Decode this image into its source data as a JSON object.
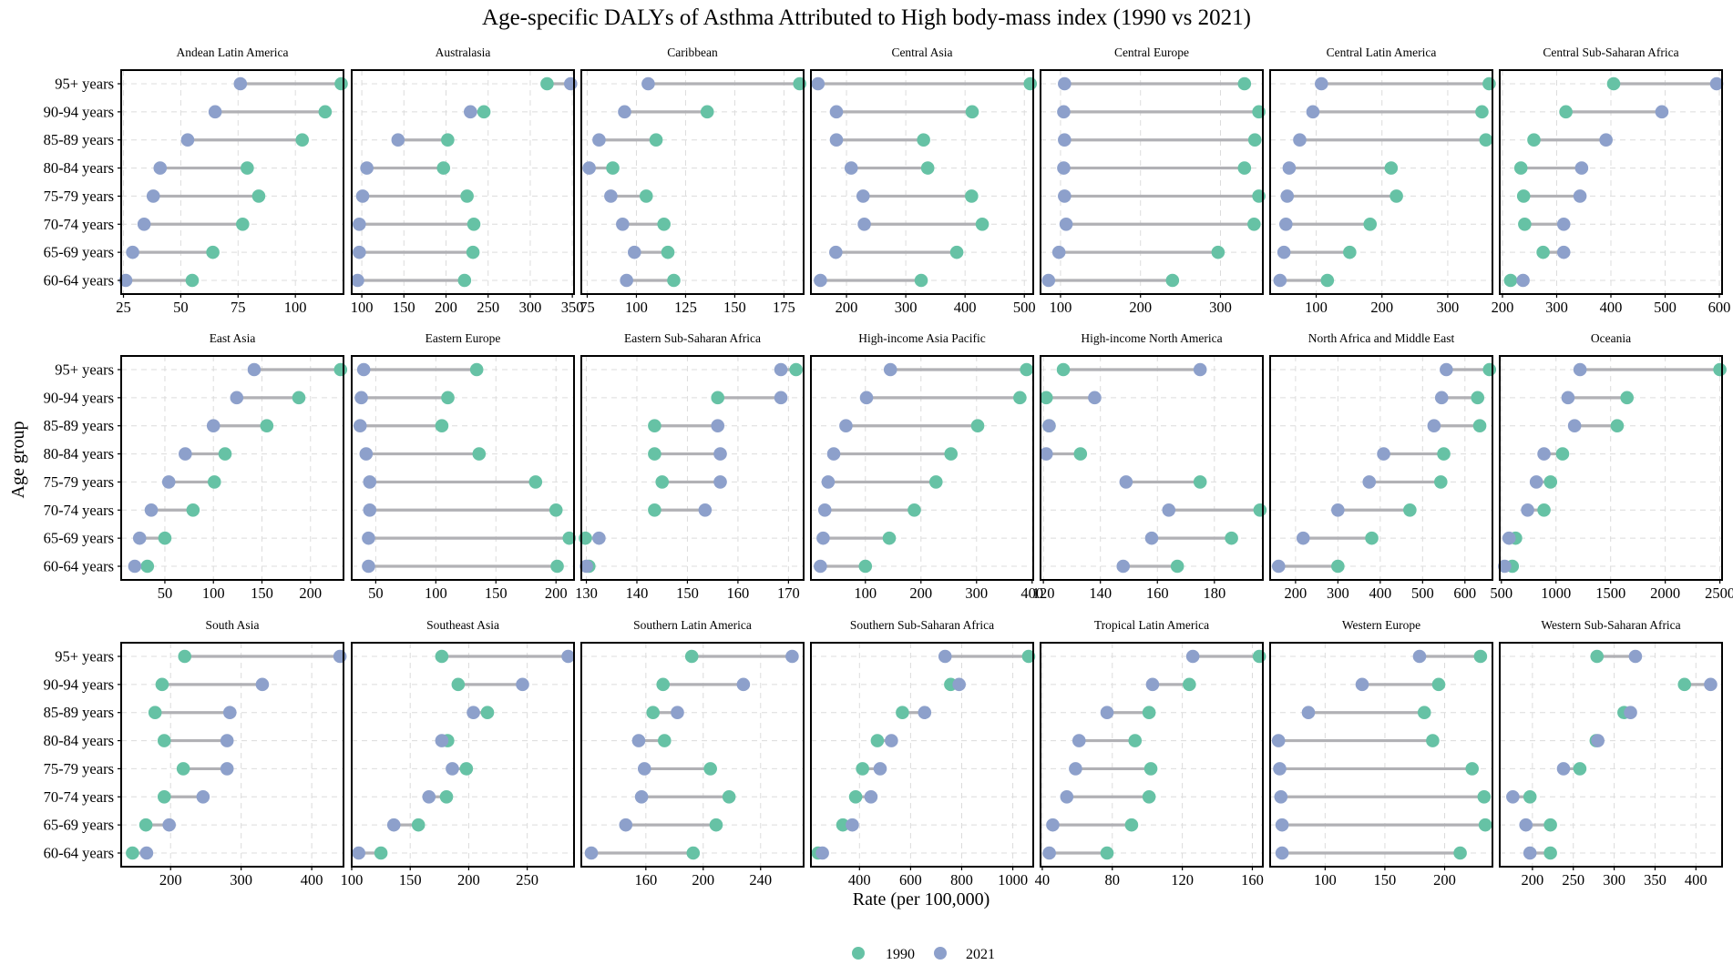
{
  "colors": {
    "c1990": "#66C2A5",
    "c2021": "#8DA0CB",
    "segment": "#b1b1b5"
  },
  "chart_data": {
    "type": "dumbbell",
    "title": "Age-specific DALYs of Asthma Attributed to High body-mass index (1990 vs 2021)",
    "xlabel": "Rate (per 100,000)",
    "ylabel": "Age group",
    "categories": [
      "95+ years",
      "90-94 years",
      "85-89 years",
      "80-84 years",
      "75-79 years",
      "70-74 years",
      "65-69 years",
      "60-64 years"
    ],
    "legend": [
      {
        "label": "1990",
        "color": "#66C2A5"
      },
      {
        "label": "2021",
        "color": "#8DA0CB"
      }
    ],
    "legend_position": "bottom",
    "panels": [
      {
        "name": "Andean Latin America",
        "xlim": [
          24,
          121
        ],
        "ticks": [
          25,
          50,
          75,
          100
        ],
        "v1990": [
          120,
          113,
          103,
          79,
          84,
          77,
          64,
          55
        ],
        "v2021": [
          76,
          65,
          53,
          41,
          38,
          34,
          29,
          26
        ]
      },
      {
        "name": "Australasia",
        "xlim": [
          88,
          352
        ],
        "ticks": [
          100,
          150,
          200,
          250,
          300,
          350
        ],
        "v1990": [
          320,
          245,
          202,
          197,
          225,
          233,
          232,
          222
        ],
        "v2021": [
          348,
          229,
          143,
          106,
          101,
          97,
          97,
          95
        ]
      },
      {
        "name": "Caribbean",
        "xlim": [
          72,
          185
        ],
        "ticks": [
          75,
          100,
          125,
          150,
          175
        ],
        "v1990": [
          183,
          136,
          110,
          88,
          105,
          114,
          116,
          119
        ],
        "v2021": [
          106,
          94,
          81,
          76,
          87,
          93,
          99,
          95
        ]
      },
      {
        "name": "Central Asia",
        "xlim": [
          140,
          515
        ],
        "ticks": [
          200,
          300,
          400,
          500
        ],
        "v1990": [
          510,
          412,
          330,
          337,
          411,
          429,
          386,
          326
        ],
        "v2021": [
          152,
          183,
          183,
          208,
          228,
          230,
          182,
          156
        ]
      },
      {
        "name": "Central Europe",
        "xlim": [
          75,
          353
        ],
        "ticks": [
          100,
          200,
          300
        ],
        "v1990": [
          330,
          348,
          343,
          330,
          348,
          342,
          297,
          240
        ],
        "v2021": [
          105,
          104,
          105,
          104,
          105,
          107,
          98,
          85
        ]
      },
      {
        "name": "Central Latin America",
        "xlim": [
          30,
          368
        ],
        "ticks": [
          100,
          200,
          300
        ],
        "v1990": [
          363,
          352,
          358,
          214,
          222,
          182,
          151,
          117
        ],
        "v2021": [
          108,
          95,
          75,
          59,
          56,
          54,
          51,
          45
        ]
      },
      {
        "name": "Central Sub-Saharan Africa",
        "xlim": [
          195,
          605
        ],
        "ticks": [
          200,
          300,
          400,
          500,
          600
        ],
        "v1990": [
          405,
          317,
          258,
          234,
          239,
          241,
          275,
          215
        ],
        "v2021": [
          595,
          494,
          391,
          346,
          343,
          313,
          313,
          238
        ]
      },
      {
        "name": "East Asia",
        "xlim": [
          5,
          234
        ],
        "ticks": [
          50,
          100,
          150,
          200
        ],
        "v1990": [
          231,
          188,
          155,
          112,
          101,
          79,
          50,
          32
        ],
        "v2021": [
          142,
          124,
          100,
          71,
          54,
          36,
          24,
          19
        ]
      },
      {
        "name": "Eastern Europe",
        "xlim": [
          30,
          215
        ],
        "ticks": [
          50,
          100,
          150,
          200
        ],
        "v1990": [
          134,
          110,
          105,
          136,
          183,
          200,
          211,
          201
        ],
        "v2021": [
          40,
          38,
          37,
          42,
          45,
          45,
          44,
          44
        ]
      },
      {
        "name": "Eastern Sub-Saharan Africa",
        "xlim": [
          129,
          173
        ],
        "ticks": [
          130,
          140,
          150,
          160,
          170
        ],
        "v1990": [
          171.5,
          156,
          143.5,
          143.5,
          145,
          143.5,
          129.8,
          130.5
        ],
        "v2021": [
          168.5,
          168.5,
          156,
          156.5,
          156.5,
          153.5,
          132.5,
          130
        ]
      },
      {
        "name": "High-income Asia Pacific",
        "xlim": [
          2,
          402
        ],
        "ticks": [
          100,
          200,
          300,
          400
        ],
        "v1990": [
          390,
          378,
          302,
          254,
          227,
          188,
          143,
          100
        ],
        "v2021": [
          145,
          102,
          65,
          43,
          33,
          27,
          24,
          19
        ]
      },
      {
        "name": "High-income North America",
        "xlim": [
          119,
          197
        ],
        "ticks": [
          120,
          140,
          160,
          180
        ],
        "v1990": [
          127,
          121,
          122,
          133,
          175,
          196,
          186,
          167
        ],
        "v2021": [
          175,
          138,
          122,
          121,
          149,
          164,
          158,
          148
        ]
      },
      {
        "name": "North Africa and Middle East",
        "xlim": [
          140,
          665
        ],
        "ticks": [
          200,
          300,
          400,
          500,
          600
        ],
        "v1990": [
          658,
          630,
          635,
          550,
          543,
          470,
          380,
          300
        ],
        "v2021": [
          556,
          545,
          527,
          408,
          374,
          300,
          218,
          160
        ]
      },
      {
        "name": "Oceania",
        "xlim": [
          485,
          2520
        ],
        "ticks": [
          500,
          1000,
          1500,
          2000,
          2500
        ],
        "v1990": [
          2500,
          1650,
          1560,
          1060,
          950,
          890,
          630,
          600
        ],
        "v2021": [
          1220,
          1110,
          1170,
          890,
          820,
          740,
          570,
          530
        ]
      },
      {
        "name": "South Asia",
        "xlim": [
          130,
          445
        ],
        "ticks": [
          200,
          300,
          400
        ],
        "v1990": [
          220,
          188,
          178,
          191,
          218,
          191,
          165,
          146
        ],
        "v2021": [
          440,
          330,
          284,
          280,
          280,
          246,
          198,
          166
        ]
      },
      {
        "name": "Southeast Asia",
        "xlim": [
          100,
          290
        ],
        "ticks": [
          100,
          150,
          200,
          250
        ],
        "v1990": [
          177,
          191,
          216,
          182,
          198,
          181,
          157,
          125
        ],
        "v2021": [
          285,
          246,
          204,
          177,
          186,
          166,
          136,
          106
        ]
      },
      {
        "name": "Southern Latin America",
        "xlim": [
          115,
          270
        ],
        "ticks": [
          160,
          200,
          240
        ],
        "v1990": [
          192,
          172,
          165,
          173,
          205,
          218,
          209,
          193
        ],
        "v2021": [
          262,
          228,
          182,
          155,
          159,
          157,
          146,
          122
        ]
      },
      {
        "name": "Southern Sub-Saharan Africa",
        "xlim": [
          210,
          1080
        ],
        "ticks": [
          400,
          600,
          800,
          1000
        ],
        "v1990": [
          1062,
          757,
          568,
          470,
          412,
          385,
          335,
          238
        ],
        "v2021": [
          735,
          790,
          655,
          525,
          481,
          445,
          372,
          255
        ]
      },
      {
        "name": "Tropical Latin America",
        "xlim": [
          39,
          166
        ],
        "ticks": [
          40,
          80,
          120,
          160
        ],
        "v1990": [
          164,
          124,
          101,
          93,
          102,
          101,
          91,
          77
        ],
        "v2021": [
          126,
          103,
          77,
          61,
          59,
          54,
          46,
          44
        ]
      },
      {
        "name": "Western Europe",
        "xlim": [
          54,
          240
        ],
        "ticks": [
          100,
          150,
          200
        ],
        "v1990": [
          230,
          195,
          183,
          190,
          223,
          233,
          234,
          213
        ],
        "v2021": [
          179,
          131,
          86,
          61,
          62,
          63,
          64,
          64
        ]
      },
      {
        "name": "Western Sub-Saharan Africa",
        "xlim": [
          160,
          432
        ],
        "ticks": [
          200,
          250,
          300,
          350,
          400
        ],
        "v1990": [
          279,
          386,
          312,
          278,
          258,
          197,
          222,
          222
        ],
        "v2021": [
          326,
          418,
          320,
          280,
          238,
          176,
          192,
          197
        ]
      }
    ]
  }
}
